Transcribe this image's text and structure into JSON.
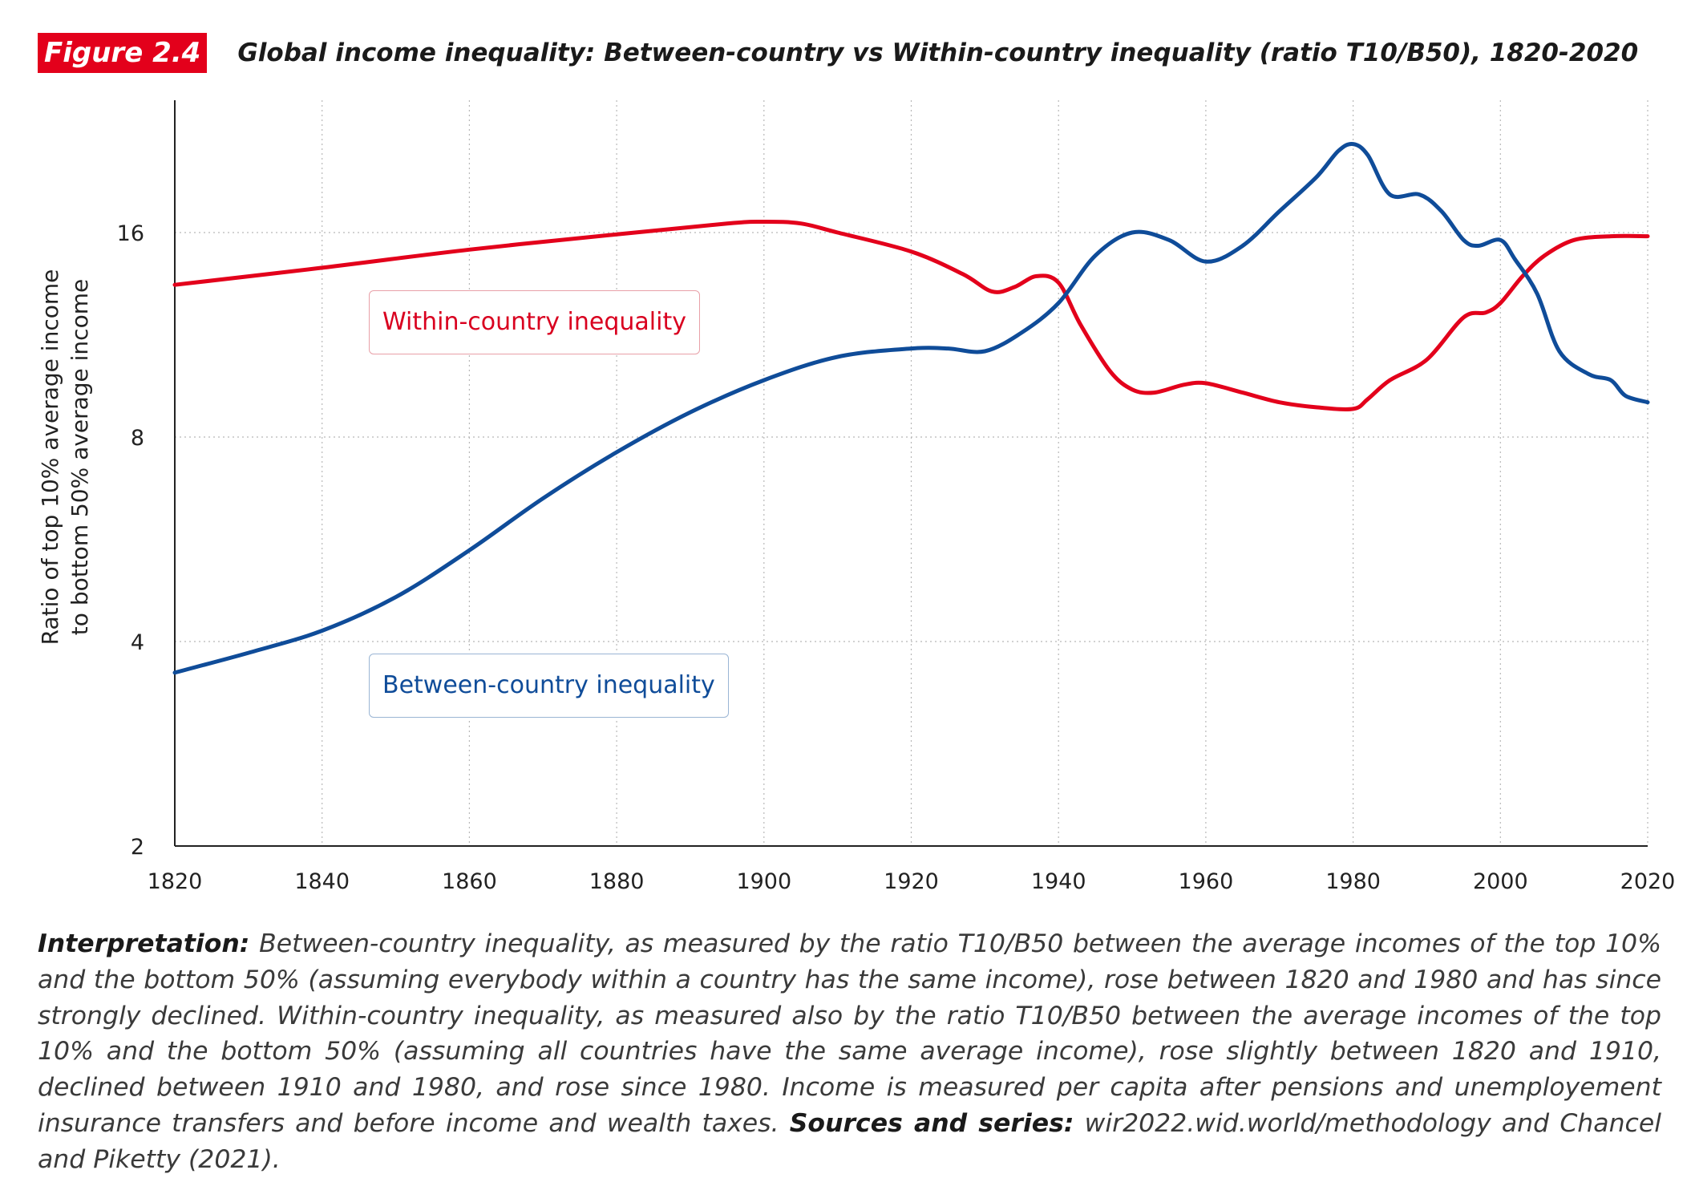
{
  "header": {
    "figure_tag": "Figure 2.4",
    "title": "Global income inequality: Between-country vs Within-country inequality (ratio T10/B50), 1820-2020"
  },
  "chart_data": {
    "type": "line",
    "title": "Global income inequality: Between-country vs Within-country inequality (ratio T10/B50), 1820-2020",
    "xlabel": "",
    "ylabel": "Ratio of top 10% average income to bottom 50% average income",
    "ylabel_lines": [
      "Ratio of top 10% average income",
      "to bottom 50% average income"
    ],
    "y_scale": "log2",
    "xlim": [
      1820,
      2020
    ],
    "ylim": [
      2,
      20
    ],
    "x_ticks": [
      1820,
      1840,
      1860,
      1880,
      1900,
      1920,
      1940,
      1960,
      1980,
      2000,
      2020
    ],
    "y_ticks": [
      2,
      4,
      8,
      16
    ],
    "grid": true,
    "legend": "inline labels",
    "series": [
      {
        "name": "Within-country inequality",
        "color": "#e3001b",
        "points": [
          [
            1820,
            13.4
          ],
          [
            1840,
            14.2
          ],
          [
            1860,
            15.1
          ],
          [
            1880,
            15.9
          ],
          [
            1895,
            16.5
          ],
          [
            1900,
            16.6
          ],
          [
            1905,
            16.5
          ],
          [
            1910,
            16.0
          ],
          [
            1920,
            15.0
          ],
          [
            1927,
            13.9
          ],
          [
            1931,
            13.1
          ],
          [
            1934,
            13.3
          ],
          [
            1937,
            13.8
          ],
          [
            1940,
            13.5
          ],
          [
            1943,
            11.7
          ],
          [
            1947,
            10.0
          ],
          [
            1950,
            9.4
          ],
          [
            1953,
            9.3
          ],
          [
            1957,
            9.55
          ],
          [
            1960,
            9.6
          ],
          [
            1965,
            9.3
          ],
          [
            1970,
            9.0
          ],
          [
            1975,
            8.85
          ],
          [
            1980,
            8.8
          ],
          [
            1982,
            9.1
          ],
          [
            1985,
            9.7
          ],
          [
            1990,
            10.4
          ],
          [
            1995,
            12.0
          ],
          [
            1998,
            12.2
          ],
          [
            2000,
            12.6
          ],
          [
            2003,
            13.8
          ],
          [
            2006,
            14.8
          ],
          [
            2010,
            15.6
          ],
          [
            2015,
            15.8
          ],
          [
            2020,
            15.8
          ]
        ]
      },
      {
        "name": "Between-country inequality",
        "color": "#0f4c99",
        "points": [
          [
            1820,
            3.6
          ],
          [
            1830,
            3.85
          ],
          [
            1840,
            4.15
          ],
          [
            1850,
            4.65
          ],
          [
            1860,
            5.45
          ],
          [
            1870,
            6.5
          ],
          [
            1880,
            7.6
          ],
          [
            1890,
            8.7
          ],
          [
            1900,
            9.7
          ],
          [
            1910,
            10.5
          ],
          [
            1920,
            10.8
          ],
          [
            1925,
            10.8
          ],
          [
            1930,
            10.7
          ],
          [
            1935,
            11.4
          ],
          [
            1940,
            12.6
          ],
          [
            1945,
            14.8
          ],
          [
            1950,
            16.0
          ],
          [
            1955,
            15.6
          ],
          [
            1960,
            14.5
          ],
          [
            1965,
            15.3
          ],
          [
            1970,
            17.2
          ],
          [
            1975,
            19.3
          ],
          [
            1978,
            21.1
          ],
          [
            1980,
            21.6
          ],
          [
            1982,
            20.8
          ],
          [
            1985,
            18.2
          ],
          [
            1989,
            18.2
          ],
          [
            1992,
            17.2
          ],
          [
            1995,
            15.6
          ],
          [
            1997,
            15.3
          ],
          [
            2000,
            15.6
          ],
          [
            2002,
            14.6
          ],
          [
            2005,
            13.0
          ],
          [
            2008,
            10.7
          ],
          [
            2012,
            9.9
          ],
          [
            2015,
            9.7
          ],
          [
            2017,
            9.2
          ],
          [
            2020,
            9.0
          ]
        ]
      }
    ]
  },
  "labels": {
    "within": "Within-country inequality",
    "between": "Between-country inequality"
  },
  "footer": {
    "interpretation_heading": "Interpretation:",
    "interpretation_text": "Between-country inequality, as measured by the ratio T10/B50 between the average incomes of the top 10% and the bottom 50% (assuming everybody within a country has the same income), rose between 1820 and 1980 and has since strongly declined. Within-country inequality, as measured also by the ratio T10/B50 between the average incomes of the top 10% and the bottom 50% (assuming all countries have the same average income), rose slightly between 1820 and 1910, declined between 1910 and 1980, and rose since 1980. Income is measured per capita after pensions and unemployement insurance transfers and before income and wealth taxes.",
    "sources_heading": "Sources and series:",
    "sources_text": "wir2022.wid.world/methodology and Chancel and Piketty (2021)."
  }
}
